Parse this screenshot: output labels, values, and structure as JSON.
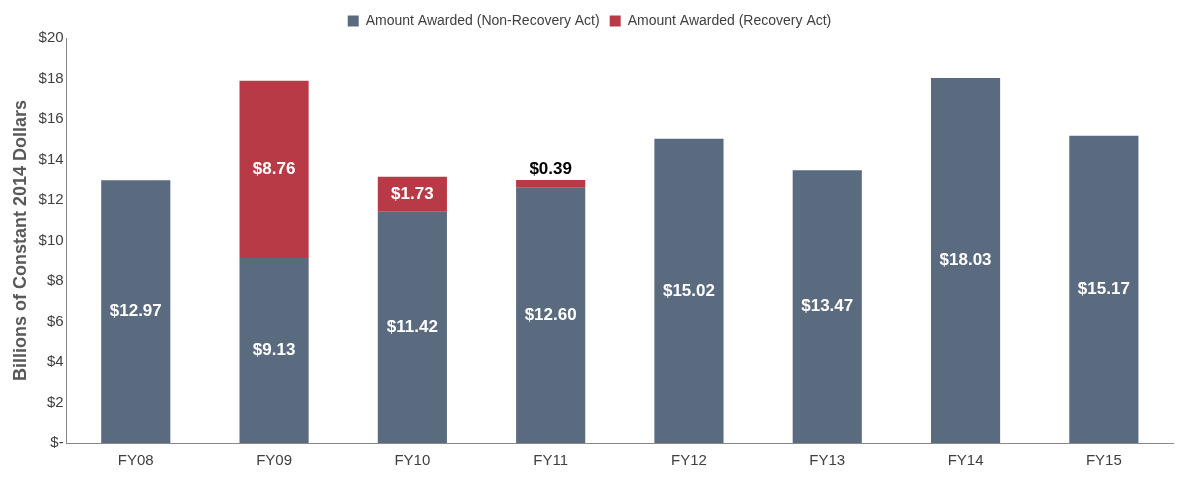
{
  "chart_data": {
    "type": "bar",
    "categories": [
      "FY08",
      "FY09",
      "FY10",
      "FY11",
      "FY12",
      "FY13",
      "FY14",
      "FY15"
    ],
    "series": [
      {
        "name": "Amount Awarded (Non-Recovery Act)",
        "color": "#5b6b7f",
        "values": [
          12.97,
          9.13,
          11.42,
          12.6,
          15.02,
          13.47,
          18.03,
          15.17
        ],
        "value_labels": [
          "$12.97",
          "$9.13",
          "$11.42",
          "$12.60",
          "$15.02",
          "$13.47",
          "$18.03",
          "$15.17"
        ]
      },
      {
        "name": "Amount Awarded (Recovery Act)",
        "color": "#b83a46",
        "values": [
          null,
          8.76,
          1.73,
          0.39,
          null,
          null,
          null,
          null
        ],
        "value_labels": [
          null,
          "$8.76",
          "$1.73",
          "$0.39",
          null,
          null,
          null,
          null
        ]
      }
    ],
    "ylabel": "Billions of Constant 2014 Dollars",
    "ylim": [
      0,
      20
    ],
    "yticks": [
      {
        "value": 0,
        "label": "$-"
      },
      {
        "value": 2,
        "label": "$2"
      },
      {
        "value": 4,
        "label": "$4"
      },
      {
        "value": 6,
        "label": "$6"
      },
      {
        "value": 8,
        "label": "$8"
      },
      {
        "value": 10,
        "label": "$10"
      },
      {
        "value": 12,
        "label": "$12"
      },
      {
        "value": 14,
        "label": "$14"
      },
      {
        "value": 16,
        "label": "$16"
      },
      {
        "value": 18,
        "label": "$18"
      },
      {
        "value": 20,
        "label": "$20"
      }
    ],
    "stacked": true,
    "grid": false,
    "legend": "top",
    "data_labels": true
  }
}
